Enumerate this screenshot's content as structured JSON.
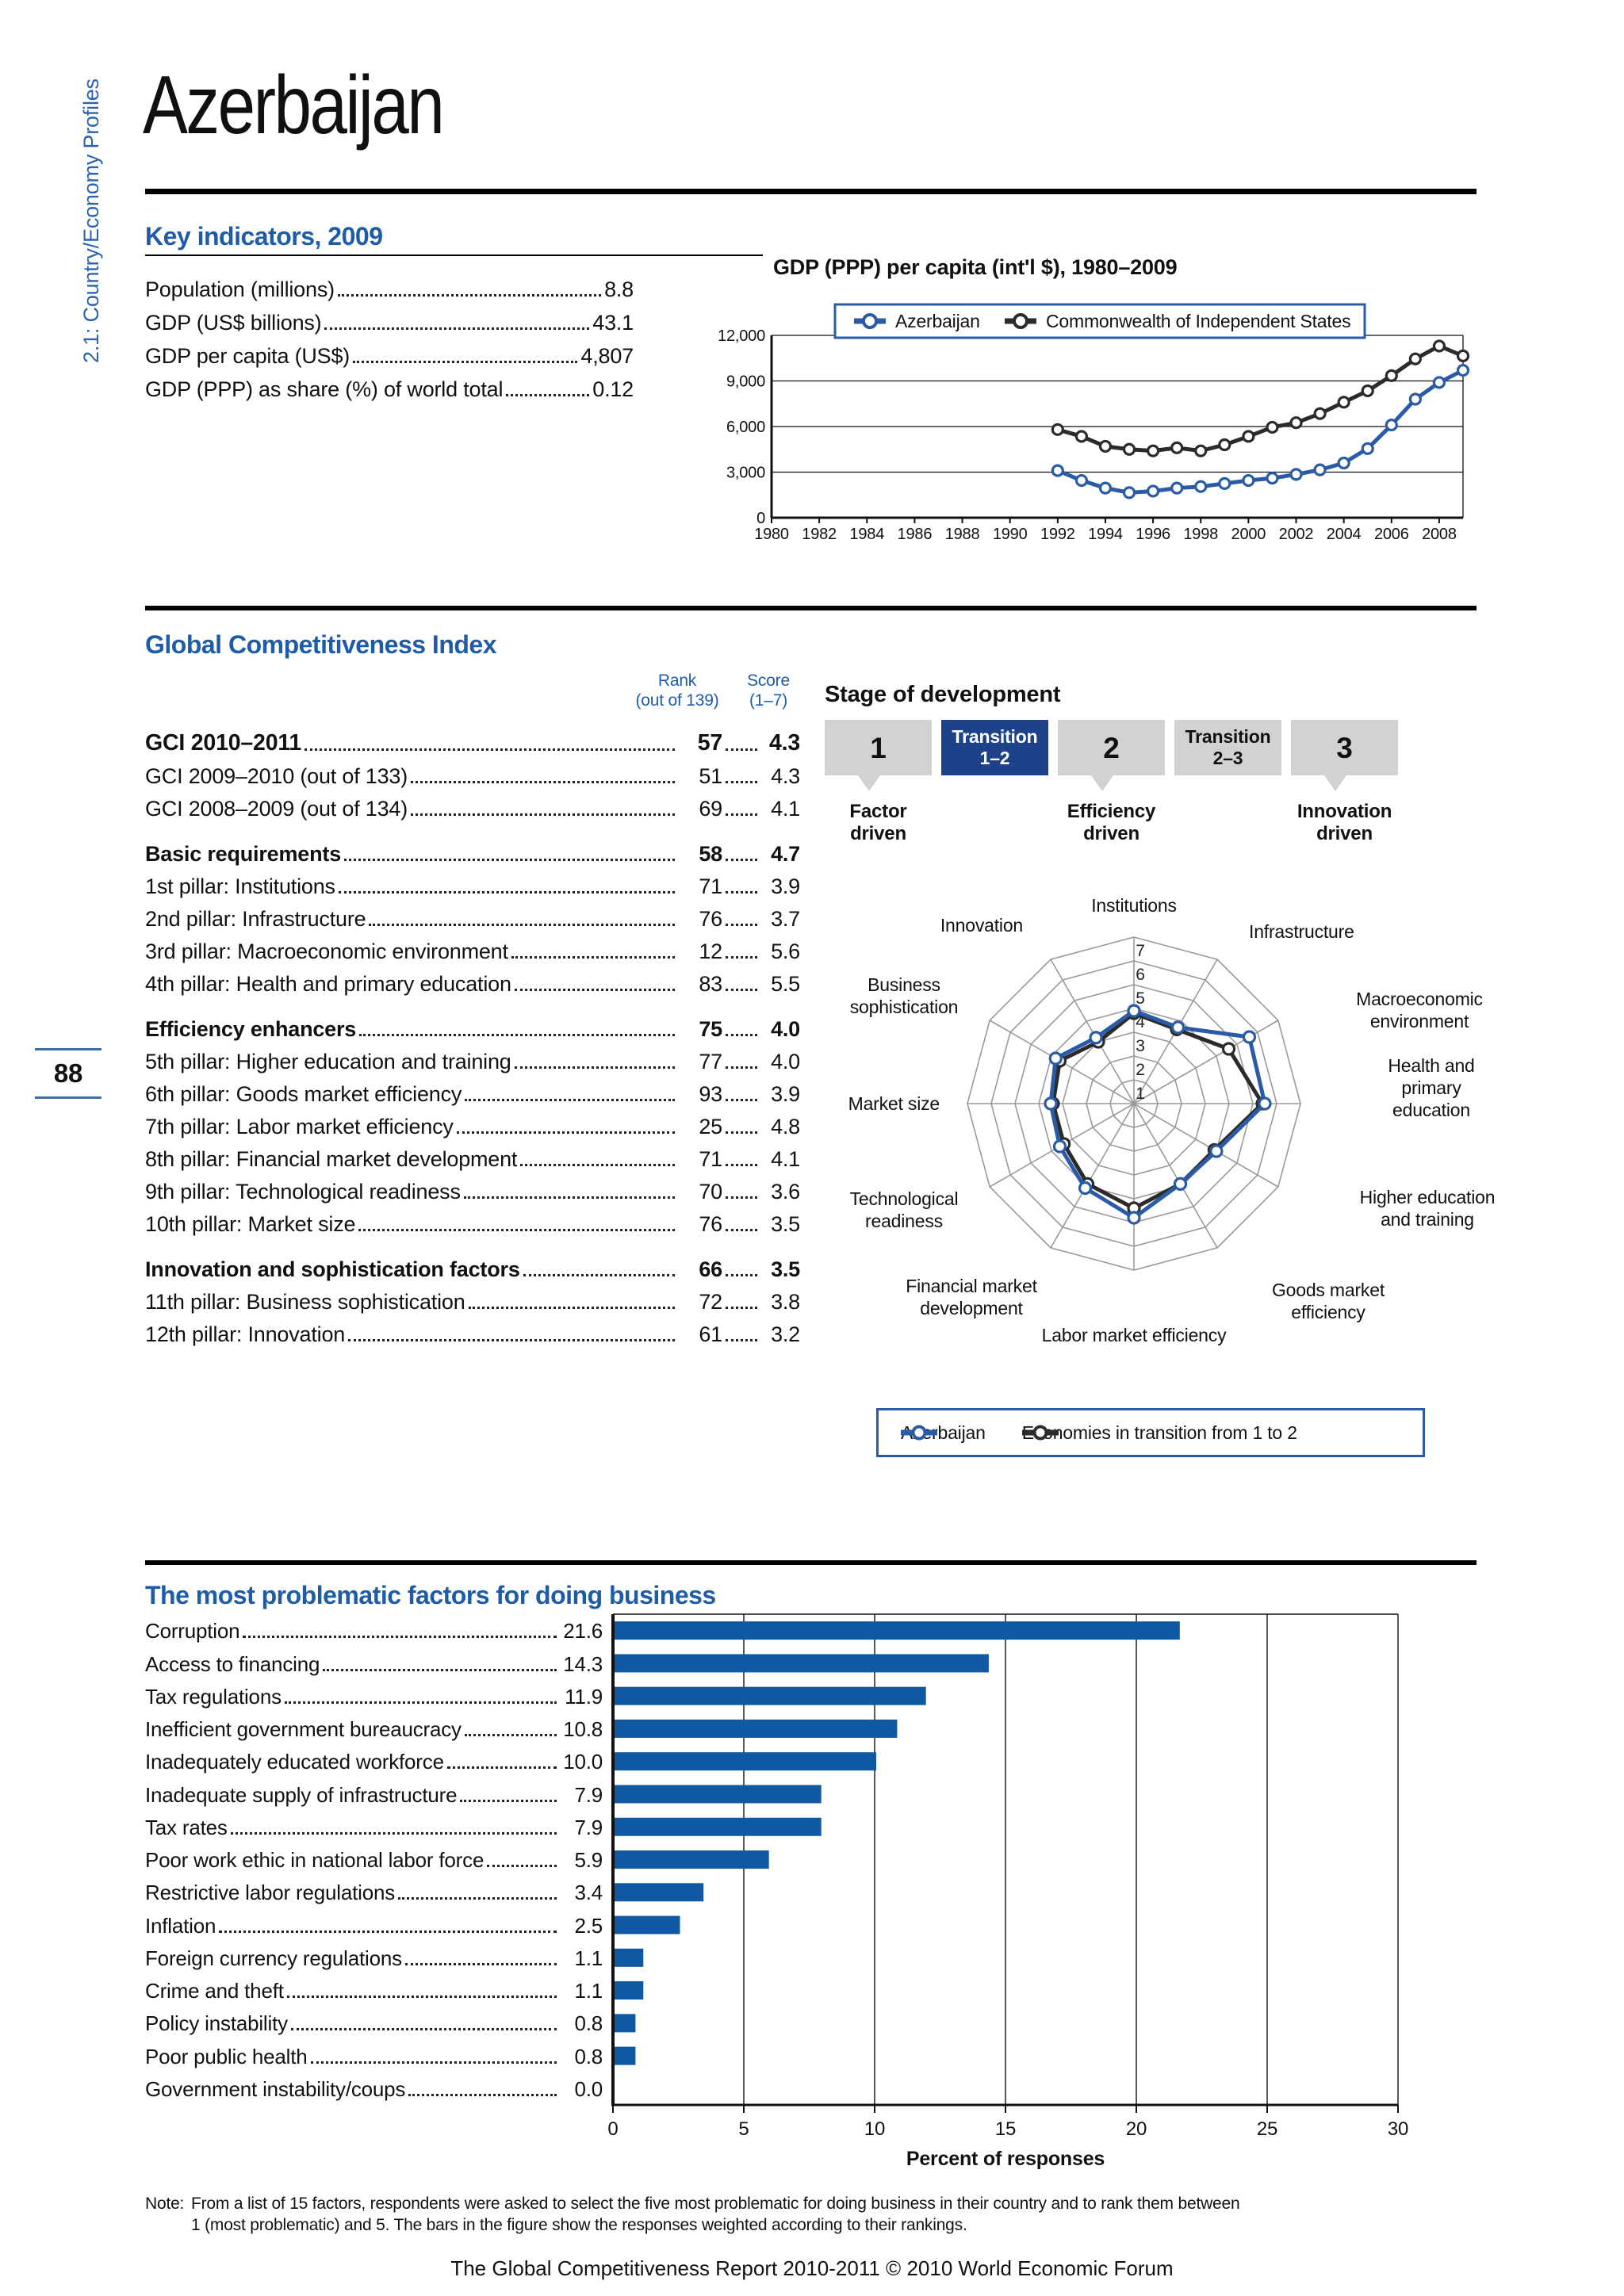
{
  "page": {
    "sidebar_label": "2.1: Country/Economy Profiles",
    "title": "Azerbaijan",
    "page_number": "88",
    "note_label": "Note:",
    "note_line1": "From a list of 15 factors, respondents were asked to select the five most problematic for doing business in their country and to rank them between",
    "note_line2": "1 (most problematic) and 5. The bars in the figure show the responses weighted according to their rankings.",
    "footer": "The Global Competitiveness Report 2010-2011 © 2010 World Economic Forum"
  },
  "colors": {
    "accent_blue": "#1f5ca8",
    "series_blue": "#2a5ba7",
    "series_black": "#2b2b2b",
    "bar_blue": "#1058a2",
    "stage_highlight_navy": "#1d4289",
    "stage_gray": "#d2d2d2",
    "grid_gray": "#9a9a9a"
  },
  "key_indicators": {
    "heading": "Key indicators, 2009",
    "items": [
      {
        "label": "Population (millions)",
        "value": "8.8"
      },
      {
        "label": "GDP (US$ billions)",
        "value": "43.1"
      },
      {
        "label": "GDP per capita (US$)",
        "value": "4,807"
      },
      {
        "label": "GDP (PPP) as share (%) of world total",
        "value": "0.12"
      }
    ]
  },
  "gci": {
    "heading": "Global Competitiveness Index",
    "rank_header_1": "Rank",
    "rank_header_2": "(out of 139)",
    "score_header_1": "Score",
    "score_header_2": "(1–7)",
    "rows": [
      {
        "label": "GCI 2010–2011",
        "rank": "57",
        "score": "4.3",
        "style": "big",
        "gap": false
      },
      {
        "label": "GCI 2009–2010 (out of 133)",
        "rank": "51",
        "score": "4.3",
        "style": "normal",
        "gap": false
      },
      {
        "label": "GCI 2008–2009 (out of 134)",
        "rank": "69",
        "score": "4.1",
        "style": "normal",
        "gap": false
      },
      {
        "label": "Basic requirements",
        "rank": "58",
        "score": "4.7",
        "style": "bold",
        "gap": true
      },
      {
        "label": "1st pillar: Institutions",
        "rank": "71",
        "score": "3.9",
        "style": "normal",
        "gap": false
      },
      {
        "label": "2nd pillar: Infrastructure",
        "rank": "76",
        "score": "3.7",
        "style": "normal",
        "gap": false
      },
      {
        "label": "3rd pillar: Macroeconomic environment",
        "rank": "12",
        "score": "5.6",
        "style": "normal",
        "gap": false
      },
      {
        "label": "4th pillar: Health and primary education",
        "rank": "83",
        "score": "5.5",
        "style": "normal",
        "gap": false
      },
      {
        "label": "Efficiency enhancers",
        "rank": "75",
        "score": "4.0",
        "style": "bold",
        "gap": true
      },
      {
        "label": "5th pillar: Higher education and training",
        "rank": "77",
        "score": "4.0",
        "style": "normal",
        "gap": false
      },
      {
        "label": "6th pillar: Goods market efficiency",
        "rank": "93",
        "score": "3.9",
        "style": "normal",
        "gap": false
      },
      {
        "label": "7th pillar: Labor market efficiency",
        "rank": "25",
        "score": "4.8",
        "style": "normal",
        "gap": false
      },
      {
        "label": "8th pillar: Financial market development",
        "rank": "71",
        "score": "4.1",
        "style": "normal",
        "gap": false
      },
      {
        "label": "9th pillar: Technological readiness",
        "rank": "70",
        "score": "3.6",
        "style": "normal",
        "gap": false
      },
      {
        "label": "10th pillar: Market size",
        "rank": "76",
        "score": "3.5",
        "style": "normal",
        "gap": false
      },
      {
        "label": "Innovation and sophistication factors",
        "rank": "66",
        "score": "3.5",
        "style": "bold",
        "gap": true
      },
      {
        "label": "11th pillar: Business sophistication",
        "rank": "72",
        "score": "3.8",
        "style": "normal",
        "gap": false
      },
      {
        "label": "12th pillar: Innovation",
        "rank": "61",
        "score": "3.2",
        "style": "normal",
        "gap": false
      }
    ]
  },
  "stage": {
    "heading": "Stage of development",
    "boxes": [
      {
        "label_lines": [
          "1"
        ],
        "highlighted": false,
        "pointer": true
      },
      {
        "label_lines": [
          "Transition",
          "1–2"
        ],
        "highlighted": true,
        "pointer": false
      },
      {
        "label_lines": [
          "2"
        ],
        "highlighted": false,
        "pointer": true
      },
      {
        "label_lines": [
          "Transition",
          "2–3"
        ],
        "highlighted": false,
        "pointer": false
      },
      {
        "label_lines": [
          "3"
        ],
        "highlighted": false,
        "pointer": true
      }
    ],
    "captions": [
      [
        "Factor",
        "driven"
      ],
      [
        "Efficiency",
        "driven"
      ],
      [
        "Innovation",
        "driven"
      ]
    ]
  },
  "problem_factors": {
    "heading": "The most problematic factors for doing business"
  },
  "chart_data": [
    {
      "id": "gdp_per_capita",
      "type": "line",
      "title": "GDP (PPP) per capita (int'l $), 1980–2009",
      "x": [
        1992,
        1993,
        1994,
        1995,
        1996,
        1997,
        1998,
        1999,
        2000,
        2001,
        2002,
        2003,
        2004,
        2005,
        2006,
        2007,
        2008,
        2009
      ],
      "series": [
        {
          "name": "Azerbaijan",
          "color": "#2a5ba7",
          "values": [
            3100,
            2450,
            1950,
            1650,
            1750,
            1950,
            2050,
            2250,
            2450,
            2600,
            2850,
            3150,
            3600,
            4550,
            6100,
            7800,
            8900,
            9700
          ]
        },
        {
          "name": "Commonwealth of Independent States",
          "color": "#2b2b2b",
          "values": [
            5800,
            5350,
            4700,
            4500,
            4400,
            4600,
            4400,
            4800,
            5350,
            5950,
            6250,
            6850,
            7600,
            8350,
            9350,
            10450,
            11300,
            10650
          ]
        }
      ],
      "xlim": [
        1980,
        2009
      ],
      "x_ticks": [
        1980,
        1982,
        1984,
        1986,
        1988,
        1990,
        1992,
        1994,
        1996,
        1998,
        2000,
        2002,
        2004,
        2006,
        2008
      ],
      "ylim": [
        0,
        12000
      ],
      "y_ticks": [
        0,
        3000,
        6000,
        9000,
        12000
      ],
      "y_tick_labels": [
        "0",
        "3,000",
        "6,000",
        "9,000",
        "12,000"
      ],
      "legend_position": "top",
      "grid": "horizontal"
    },
    {
      "id": "gci_radar",
      "type": "radar",
      "categories": [
        "Institutions",
        "Infrastructure",
        "Macroeconomic environment",
        "Health and primary education",
        "Higher education and training",
        "Goods market efficiency",
        "Labor market efficiency",
        "Financial market development",
        "Technological readiness",
        "Market size",
        "Business sophistication",
        "Innovation"
      ],
      "category_lines": [
        [
          "Institutions"
        ],
        [
          "Infrastructure"
        ],
        [
          "Macroeconomic",
          "environment"
        ],
        [
          "Health and",
          "primary",
          "education"
        ],
        [
          "Higher education",
          "and training"
        ],
        [
          "Goods market",
          "efficiency"
        ],
        [
          "Labor market efficiency"
        ],
        [
          "Financial market",
          "development"
        ],
        [
          "Technological",
          "readiness"
        ],
        [
          "Market size"
        ],
        [
          "Business",
          "sophistication"
        ],
        [
          "Innovation"
        ]
      ],
      "rlim": [
        0,
        7
      ],
      "ring_labels": [
        "1",
        "2",
        "3",
        "4",
        "5",
        "6",
        "7"
      ],
      "series": [
        {
          "name": "Azerbaijan",
          "color": "#2a5ba7",
          "values": [
            3.9,
            3.7,
            5.6,
            5.5,
            4.0,
            3.9,
            4.8,
            4.1,
            3.6,
            3.5,
            3.8,
            3.2
          ]
        },
        {
          "name": "Economies in transition from 1 to 2",
          "color": "#2b2b2b",
          "values": [
            3.8,
            3.6,
            4.6,
            5.4,
            3.9,
            3.9,
            4.4,
            3.9,
            3.4,
            3.4,
            3.6,
            3.0
          ]
        }
      ],
      "legend_position": "bottom"
    },
    {
      "id": "problematic_factors",
      "type": "bar",
      "orientation": "horizontal",
      "categories": [
        "Corruption",
        "Access to financing",
        "Tax regulations",
        "Inefficient government bureaucracy",
        "Inadequately educated workforce",
        "Inadequate supply of infrastructure",
        "Tax rates",
        "Poor work ethic in national labor force",
        "Restrictive labor regulations",
        "Inflation",
        "Foreign currency regulations",
        "Crime and theft",
        "Policy instability",
        "Poor public health",
        "Government instability/coups"
      ],
      "values": [
        21.6,
        14.3,
        11.9,
        10.8,
        10.0,
        7.9,
        7.9,
        5.9,
        3.4,
        2.5,
        1.1,
        1.1,
        0.8,
        0.8,
        0.0
      ],
      "display_values": [
        "21.6",
        "14.3",
        "11.9",
        "10.8",
        "10.0",
        "7.9",
        "7.9",
        "5.9",
        "3.4",
        "2.5",
        "1.1",
        "1.1",
        "0.8",
        "0.8",
        "0.0"
      ],
      "xlabel": "Percent of responses",
      "xlim": [
        0,
        30
      ],
      "x_ticks": [
        0,
        5,
        10,
        15,
        20,
        25,
        30
      ],
      "grid": "vertical"
    }
  ]
}
